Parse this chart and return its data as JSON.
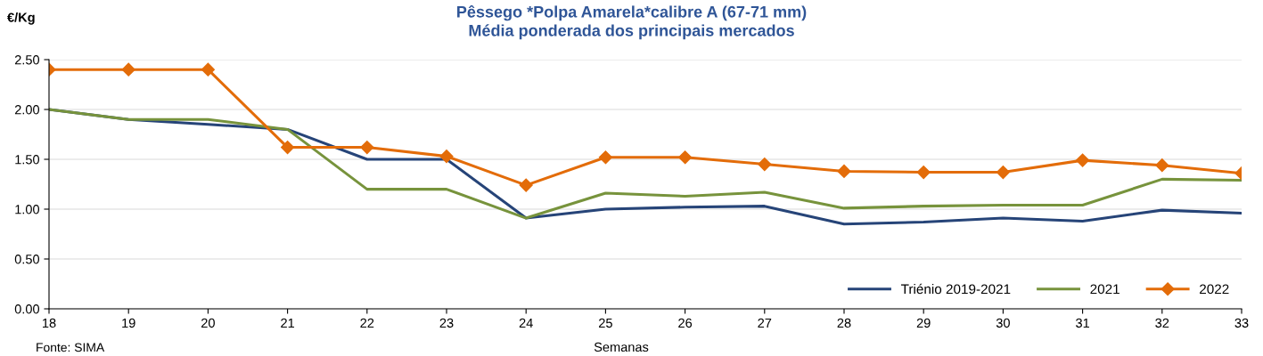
{
  "chart_data": {
    "type": "line",
    "title": "Pêssego *Polpa Amarela*calibre A (67-71 mm)\nMédia ponderada dos principais mercados",
    "xlabel": "Semanas",
    "ylabel": "€/Kg",
    "x": [
      18,
      19,
      20,
      21,
      22,
      23,
      24,
      25,
      26,
      27,
      28,
      29,
      30,
      31,
      32,
      33
    ],
    "series": [
      {
        "name": "Triénio 2019-2021",
        "color": "#264478",
        "marker": "none",
        "values": [
          2.0,
          1.9,
          1.85,
          1.8,
          1.5,
          1.5,
          0.91,
          1.0,
          1.02,
          1.03,
          0.85,
          0.87,
          0.91,
          0.88,
          0.99,
          0.96
        ]
      },
      {
        "name": "2021",
        "color": "#77933c",
        "marker": "none",
        "values": [
          2.0,
          1.9,
          1.9,
          1.8,
          1.2,
          1.2,
          0.91,
          1.16,
          1.13,
          1.17,
          1.01,
          1.03,
          1.04,
          1.04,
          1.3,
          1.29
        ]
      },
      {
        "name": "2022",
        "color": "#e36c09",
        "marker": "diamond",
        "values": [
          2.4,
          2.4,
          2.4,
          1.62,
          1.62,
          1.53,
          1.24,
          1.52,
          1.52,
          1.45,
          1.38,
          1.37,
          1.37,
          1.49,
          1.44,
          1.36
        ]
      }
    ],
    "xlim": [
      18,
      33
    ],
    "xticks": [
      18,
      19,
      20,
      21,
      22,
      23,
      24,
      25,
      26,
      27,
      28,
      29,
      30,
      31,
      32,
      33
    ],
    "ylim": [
      0,
      2.5
    ],
    "yticks": [
      {
        "value": 0,
        "label": "0.00"
      },
      {
        "value": 0.5,
        "label": "0.50"
      },
      {
        "value": 1,
        "label": "1.00"
      },
      {
        "value": 1.5,
        "label": "1.50"
      },
      {
        "value": 2,
        "label": "2.00"
      },
      {
        "value": 2.5,
        "label": "2.50"
      }
    ],
    "grid": "y",
    "legend": "bottom right",
    "annotations": [
      "Fonte: SIMA"
    ]
  }
}
